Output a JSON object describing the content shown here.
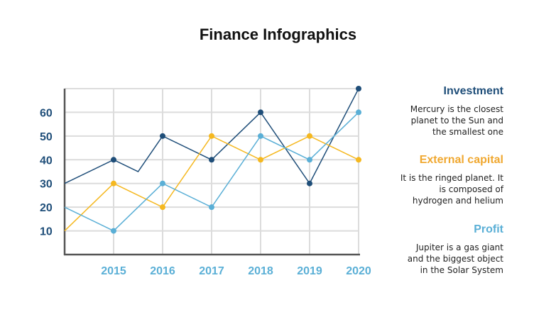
{
  "title": "Finance Infographics",
  "chart_data": {
    "type": "line",
    "x": [
      "2014",
      "2015",
      "2015.5",
      "2016",
      "2017",
      "2018",
      "2019",
      "2020"
    ],
    "x_tick_labels": [
      "2015",
      "2016",
      "2017",
      "2018",
      "2019",
      "2020"
    ],
    "y_tick_labels": [
      "10",
      "20",
      "30",
      "40",
      "50",
      "60"
    ],
    "ylim": [
      0,
      70
    ],
    "grid": true,
    "series": [
      {
        "name": "Investment",
        "color": "#1f4e79",
        "points": [
          [
            2014,
            30
          ],
          [
            2015,
            40
          ],
          [
            2015.5,
            35
          ],
          [
            2016,
            50
          ],
          [
            2017,
            40
          ],
          [
            2018,
            60
          ],
          [
            2019,
            30
          ],
          [
            2020,
            70
          ]
        ]
      },
      {
        "name": "External capital",
        "color": "#f5b820",
        "points": [
          [
            2014,
            10
          ],
          [
            2015,
            30
          ],
          [
            2016,
            20
          ],
          [
            2017,
            50
          ],
          [
            2018,
            40
          ],
          [
            2019,
            50
          ],
          [
            2020,
            40
          ]
        ]
      },
      {
        "name": "Profit",
        "color": "#5aafd6",
        "points": [
          [
            2014,
            20
          ],
          [
            2015,
            10
          ],
          [
            2016,
            30
          ],
          [
            2017,
            20
          ],
          [
            2018,
            50
          ],
          [
            2019,
            40
          ],
          [
            2020,
            60
          ]
        ]
      }
    ]
  },
  "legend": [
    {
      "title": "Investment",
      "color": "#1f4e79",
      "text": "Mercury is the closest planet to the Sun and the smallest one"
    },
    {
      "title": "External capital",
      "color": "#f0a830",
      "text": "It is the ringed planet. It is composed of hydrogen and helium"
    },
    {
      "title": "Profit",
      "color": "#5aafd6",
      "text": "Jupiter is a gas giant and the biggest object in the Solar System"
    }
  ]
}
